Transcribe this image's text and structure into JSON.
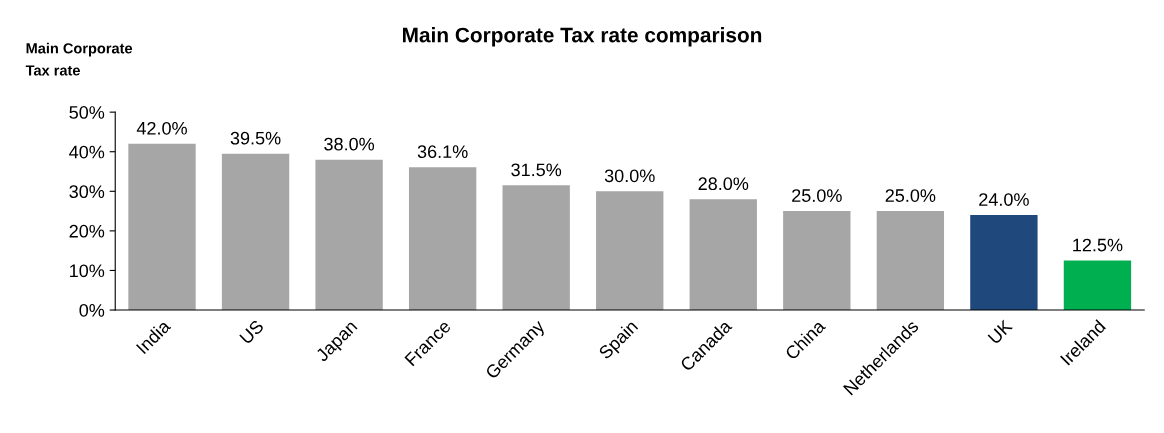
{
  "chart_data": {
    "type": "bar",
    "title": "Main Corporate Tax rate comparison",
    "ylabel": "Main Corporate\nTax rate",
    "categories": [
      "India",
      "US",
      "Japan",
      "France",
      "Germany",
      "Spain",
      "Canada",
      "China",
      "Netherlands",
      "UK",
      "Ireland"
    ],
    "values": [
      42.0,
      39.5,
      38.0,
      36.1,
      31.5,
      30.0,
      28.0,
      25.0,
      25.0,
      24.0,
      12.5
    ],
    "colors": [
      "#a6a6a6",
      "#a6a6a6",
      "#a6a6a6",
      "#a6a6a6",
      "#a6a6a6",
      "#a6a6a6",
      "#a6a6a6",
      "#a6a6a6",
      "#a6a6a6",
      "#1f497d",
      "#00b050"
    ],
    "value_labels": [
      "42.0%",
      "39.5%",
      "38.0%",
      "36.1%",
      "31.5%",
      "30.0%",
      "28.0%",
      "25.0%",
      "25.0%",
      "24.0%",
      "12.5%"
    ],
    "ylim": [
      0,
      50
    ],
    "yticks": [
      {
        "value": 0,
        "label": "0%"
      },
      {
        "value": 10,
        "label": "10%"
      },
      {
        "value": 20,
        "label": "20%"
      },
      {
        "value": 30,
        "label": "30%"
      },
      {
        "value": 40,
        "label": "40%"
      },
      {
        "value": 50,
        "label": "50%"
      }
    ],
    "grid": false,
    "legend": false
  }
}
